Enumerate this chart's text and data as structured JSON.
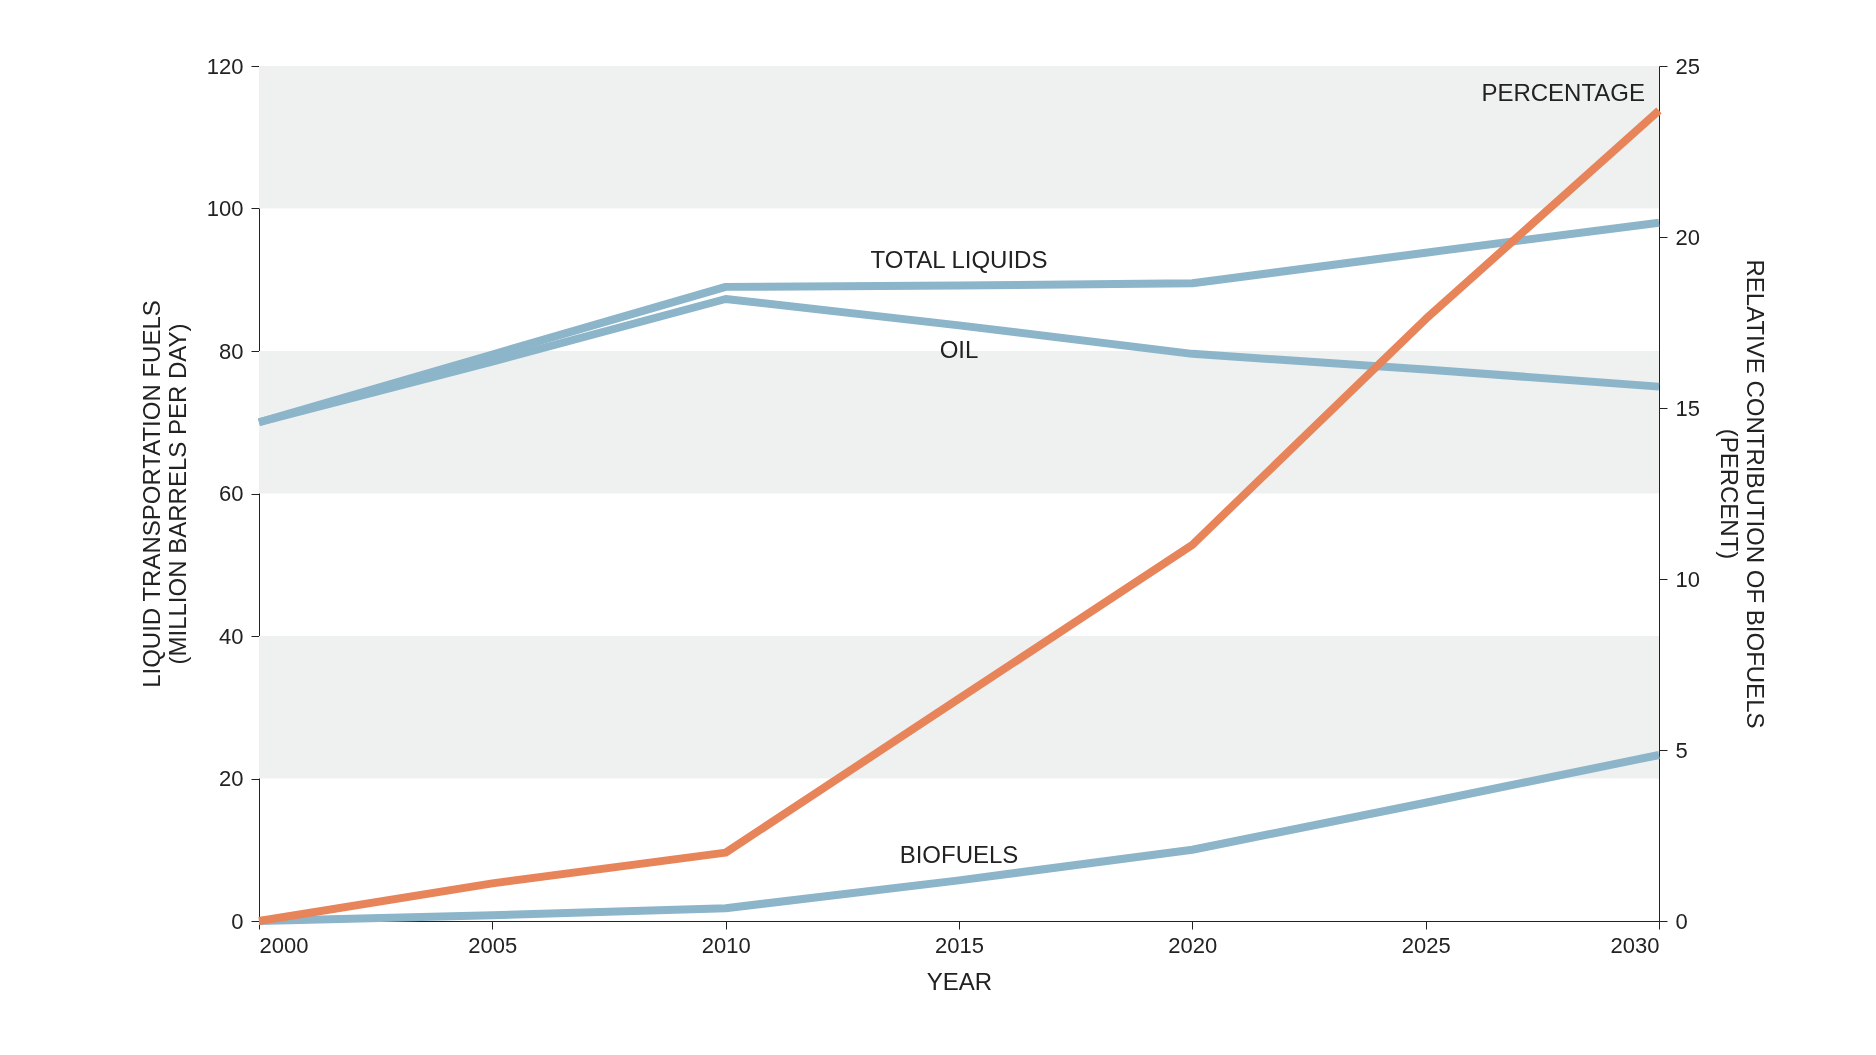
{
  "chart_data": {
    "type": "line",
    "xlabel": "YEAR",
    "ylabel": "LIQUID TRANSPORTATION FUELS\n(MILLION BARRELS PER DAY)",
    "y2label": "RELATIVE CONTRIBUTION OF BIOFUELS\n(PERCENT)",
    "x": [
      2000,
      2005,
      2010,
      2015,
      2020,
      2025,
      2030
    ],
    "series": [
      {
        "name": "TOTAL LIQUIDS",
        "color": "#8cb5ca",
        "values": [
          70,
          79.5,
          89,
          89.2,
          89.5,
          93.8,
          98
        ]
      },
      {
        "name": "OIL",
        "color": "#8cb5ca",
        "values": [
          70,
          78.5,
          87.3,
          83.6,
          79.6,
          77.4,
          75
        ]
      },
      {
        "name": "BIOFUELS",
        "color": "#8cb5ca",
        "values": [
          0,
          0.8,
          1.8,
          5.7,
          10,
          16.6,
          23.3
        ]
      },
      {
        "name": "PERCENTAGE",
        "color": "#e8845a",
        "axis": "y2",
        "values": [
          0,
          1.1,
          2,
          6.5,
          11,
          17.6,
          23.7
        ]
      }
    ],
    "xlim": [
      2000,
      2030
    ],
    "xticks": [
      2000,
      2005,
      2010,
      2015,
      2020,
      2025,
      2030
    ],
    "ylim": [
      0,
      120
    ],
    "yticks": [
      0,
      20,
      40,
      60,
      80,
      100,
      120
    ],
    "y2lim": [
      0,
      25
    ],
    "y2ticks": [
      0,
      5,
      10,
      15,
      20,
      25
    ],
    "bands": [
      {
        "axis": "y",
        "from": 20,
        "to": 40,
        "color": "#eff1f0"
      },
      {
        "axis": "y",
        "from": 60,
        "to": 80,
        "color": "#eff1f0"
      },
      {
        "axis": "y",
        "from": 100,
        "to": 120,
        "color": "#eff1f0"
      }
    ],
    "grid": false,
    "marker": "none",
    "line_style": "solid"
  }
}
